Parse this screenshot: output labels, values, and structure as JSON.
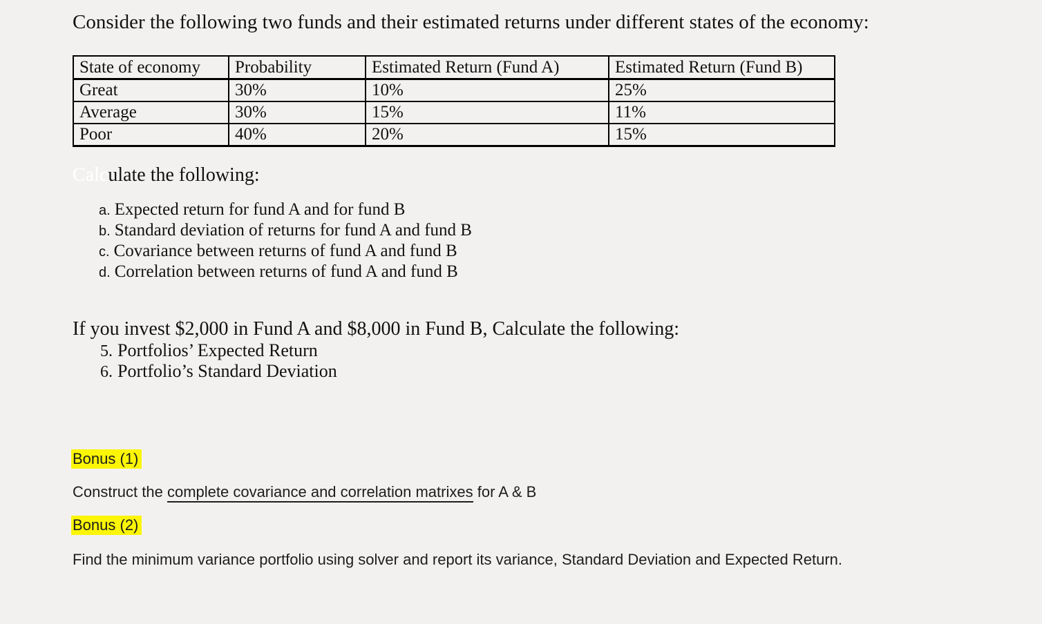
{
  "page": {
    "background_color": "#f3f1f0",
    "text_color": "#111111",
    "highlight_color": "#fcf506"
  },
  "intro": {
    "text": "Consider the following two funds and their estimated returns under different states of the economy:"
  },
  "table": {
    "headers": [
      "State of economy",
      "Probability",
      "Estimated Return (Fund A)",
      "Estimated Return (Fund B)"
    ],
    "rows": [
      [
        "Great",
        "30%",
        "10%",
        "25%"
      ],
      [
        "Average",
        "30%",
        "15%",
        "11%"
      ],
      [
        "Poor",
        "40%",
        "20%",
        "15%"
      ]
    ]
  },
  "calculate": {
    "hidden_prefix": "Calc",
    "visible_text": "ulate the following:"
  },
  "tasks": [
    {
      "marker": "a.",
      "text": "Expected return for fund A and for fund B"
    },
    {
      "marker": "b.",
      "text": "Standard deviation of returns for fund A and fund B"
    },
    {
      "marker": "c.",
      "text": "Covariance between returns of fund A and fund B"
    },
    {
      "marker": "d.",
      "text": "Correlation between returns of fund A and fund B"
    }
  ],
  "invest": {
    "intro": "If you invest $2,000 in Fund A and $8,000 in Fund B, Calculate the following:",
    "items": [
      {
        "marker": "5.",
        "text": "Portfolios’ Expected Return"
      },
      {
        "marker": "6.",
        "text": "Portfolio’s Standard Deviation"
      }
    ]
  },
  "bonus1": {
    "label": "Bonus (1)",
    "text_before": "Construct the ",
    "underlined": "complete covariance and correlation matrixes",
    "text_after": " for A & B"
  },
  "bonus2": {
    "label": "Bonus (2)",
    "text": "Find the minimum variance portfolio using solver and report its variance, Standard Deviation and Expected Return."
  }
}
